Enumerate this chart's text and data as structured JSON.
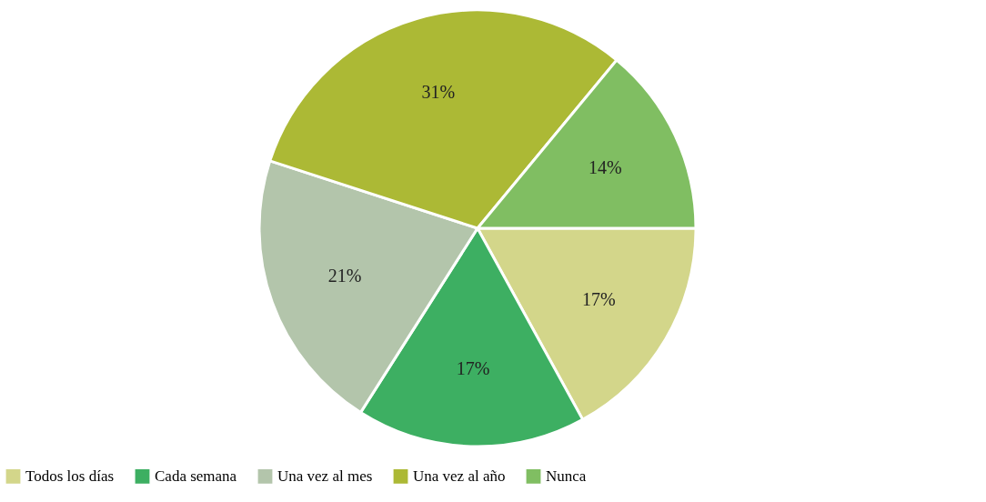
{
  "chart_data": {
    "type": "pie",
    "categories": [
      "Todos los días",
      "Cada semana",
      "Una vez al mes",
      "Una vez al año",
      "Nunca"
    ],
    "values": [
      17,
      17,
      21,
      31,
      14
    ],
    "colors": [
      "#d3d68a",
      "#3daf62",
      "#b3c5ab",
      "#acb935",
      "#80be62"
    ],
    "value_labels": [
      "17%",
      "17%",
      "21%",
      "31%",
      "14%"
    ],
    "legend": "bottom"
  }
}
